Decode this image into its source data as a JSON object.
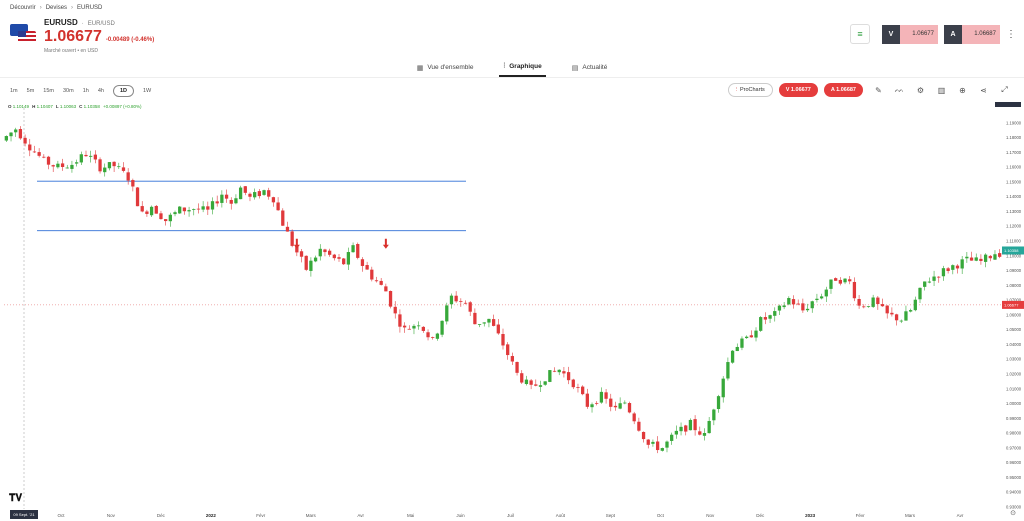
{
  "breadcrumb": [
    "Découvrir",
    "Devises",
    "EURUSD"
  ],
  "instrument": {
    "symbol": "EURUSD",
    "pair": "EUR/USD",
    "separator": "·",
    "price": "1.06677",
    "change": "-0.00489 (-0.46%)",
    "market_status": "Marché ouvert • en USD"
  },
  "trade": {
    "sell_label": "V",
    "sell_price": "1.06677",
    "buy_label": "A",
    "buy_price": "1.06687"
  },
  "tabs": [
    {
      "label": "Vue d'ensemble",
      "icon": "grid-icon",
      "active": false
    },
    {
      "label": "Graphique",
      "icon": "chart-icon",
      "active": true
    },
    {
      "label": "Actualité",
      "icon": "news-icon",
      "active": false
    }
  ],
  "timeframes": [
    "1m",
    "5m",
    "15m",
    "30m",
    "1h",
    "4h",
    "1D",
    "1W"
  ],
  "active_timeframe": "1D",
  "toolbar": {
    "prochart_label": "ProCharts",
    "sell_pill": "V 1.06677",
    "buy_pill": "A 1.06687",
    "tools": [
      "pencil-icon",
      "indicators-icon",
      "settings-icon",
      "bar-chart-icon",
      "plus-icon",
      "share-icon",
      "expand-icon"
    ]
  },
  "ohlc": {
    "o_label": "O",
    "o": "1.10149",
    "h_label": "H",
    "h": "1.10407",
    "l_label": "L",
    "l": "1.10063",
    "c_label": "C",
    "c": "1.10358",
    "change": "+0.00897 (+0.80%)"
  },
  "chart_data": {
    "type": "candlestick",
    "x_ticks": [
      "Oct",
      "Nov",
      "Déc",
      "2022",
      "Févr",
      "Mars",
      "Avr",
      "Mai",
      "Juin",
      "Juil",
      "Août",
      "Sept",
      "Oct",
      "Nov",
      "Déc",
      "2023",
      "Févr",
      "Mars",
      "Avr"
    ],
    "x_first_label": "09 Sept. '21",
    "y_ticks": [
      "1.19000",
      "1.18000",
      "1.17000",
      "1.16000",
      "1.15000",
      "1.14000",
      "1.13000",
      "1.12000",
      "1.11000",
      "1.10000",
      "1.09000",
      "1.08000",
      "1.07000",
      "1.06000",
      "1.05000",
      "1.04000",
      "1.03000",
      "1.02000",
      "1.01000",
      "1.00000",
      "0.99000",
      "0.98000",
      "0.97000",
      "0.96000",
      "0.95000",
      "0.94000",
      "0.93000"
    ],
    "ylim": [
      0.93,
      1.2
    ],
    "current_price": "1.06677",
    "last_price_label": "1.10358",
    "resistance": 1.1505,
    "support": 1.117,
    "path": [
      [
        0,
        1.178
      ],
      [
        3,
        1.186
      ],
      [
        6,
        1.174
      ],
      [
        9,
        1.164
      ],
      [
        12,
        1.16
      ],
      [
        15,
        1.162
      ],
      [
        18,
        1.169
      ],
      [
        21,
        1.16
      ],
      [
        24,
        1.161
      ],
      [
        27,
        1.153
      ],
      [
        30,
        1.128
      ],
      [
        32,
        1.134
      ],
      [
        35,
        1.124
      ],
      [
        38,
        1.131
      ],
      [
        41,
        1.132
      ],
      [
        44,
        1.13
      ],
      [
        47,
        1.142
      ],
      [
        49,
        1.136
      ],
      [
        51,
        1.146
      ],
      [
        53,
        1.139
      ],
      [
        56,
        1.144
      ],
      [
        58,
        1.139
      ],
      [
        60,
        1.122
      ],
      [
        62,
        1.108
      ],
      [
        65,
        1.091
      ],
      [
        68,
        1.104
      ],
      [
        71,
        1.098
      ],
      [
        73,
        1.095
      ],
      [
        75,
        1.105
      ],
      [
        77,
        1.094
      ],
      [
        79,
        1.086
      ],
      [
        82,
        1.076
      ],
      [
        84,
        1.06
      ],
      [
        86,
        1.05
      ],
      [
        89,
        1.055
      ],
      [
        92,
        1.042
      ],
      [
        94,
        1.057
      ],
      [
        96,
        1.072
      ],
      [
        99,
        1.068
      ],
      [
        101,
        1.054
      ],
      [
        104,
        1.057
      ],
      [
        107,
        1.04
      ],
      [
        110,
        1.02
      ],
      [
        113,
        1.01
      ],
      [
        116,
        1.018
      ],
      [
        119,
        1.023
      ],
      [
        122,
        1.014
      ],
      [
        125,
        0.999
      ],
      [
        128,
        1.005
      ],
      [
        131,
        0.996
      ],
      [
        133,
        1.001
      ],
      [
        135,
        0.99
      ],
      [
        138,
        0.972
      ],
      [
        141,
        0.97
      ],
      [
        144,
        0.98
      ],
      [
        147,
        0.986
      ],
      [
        150,
        0.978
      ],
      [
        153,
        1.008
      ],
      [
        156,
        1.038
      ],
      [
        159,
        1.043
      ],
      [
        162,
        1.056
      ],
      [
        165,
        1.06
      ],
      [
        168,
        1.071
      ],
      [
        171,
        1.063
      ],
      [
        173,
        1.069
      ],
      [
        175,
        1.074
      ],
      [
        178,
        1.085
      ],
      [
        181,
        1.082
      ],
      [
        183,
        1.066
      ],
      [
        186,
        1.069
      ],
      [
        189,
        1.06
      ],
      [
        192,
        1.057
      ],
      [
        194,
        1.063
      ],
      [
        197,
        1.082
      ],
      [
        200,
        1.088
      ],
      [
        203,
        1.093
      ],
      [
        206,
        1.097
      ],
      [
        209,
        1.096
      ],
      [
        212,
        1.102
      ]
    ],
    "arrows_at": [
      [
        62,
        1.1115
      ],
      [
        81,
        1.1115
      ]
    ]
  }
}
